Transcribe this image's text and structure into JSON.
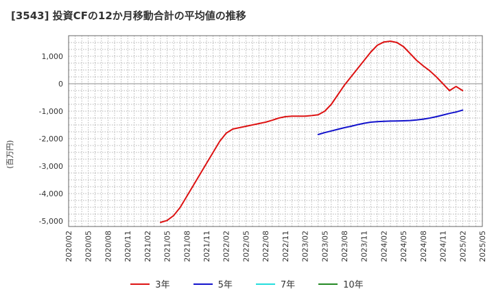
{
  "chart_data": {
    "type": "line",
    "title": "[3543]  投資CFの12か月移動合計の平均値の推移",
    "ylabel": "(百万円)",
    "xlabel": "",
    "ylim": [
      -5200,
      1750
    ],
    "yticks": [
      1000,
      0,
      -1000,
      -2000,
      -3000,
      -4000,
      -5000
    ],
    "ytick_labels": [
      "1,000",
      "0",
      "-1,000",
      "-2,000",
      "-3,000",
      "-4,000",
      "-5,000"
    ],
    "xticks": [
      "2020/02",
      "2020/05",
      "2020/08",
      "2020/11",
      "2021/02",
      "2021/05",
      "2021/08",
      "2021/11",
      "2022/02",
      "2022/05",
      "2022/08",
      "2022/11",
      "2023/02",
      "2023/05",
      "2023/08",
      "2023/11",
      "2024/02",
      "2024/05",
      "2024/08",
      "2024/11",
      "2025/02",
      "2025/05"
    ],
    "grid": true,
    "legend_position": "bottom",
    "series": [
      {
        "name": "3年",
        "color": "#dd1111",
        "x": [
          "2021/04",
          "2021/05",
          "2021/06",
          "2021/07",
          "2021/08",
          "2021/09",
          "2021/10",
          "2021/11",
          "2021/12",
          "2022/01",
          "2022/02",
          "2022/03",
          "2022/04",
          "2022/05",
          "2022/06",
          "2022/07",
          "2022/08",
          "2022/09",
          "2022/10",
          "2022/11",
          "2022/12",
          "2023/01",
          "2023/02",
          "2023/03",
          "2023/04",
          "2023/05",
          "2023/06",
          "2023/07",
          "2023/08",
          "2023/09",
          "2023/10",
          "2023/11",
          "2023/12",
          "2024/01",
          "2024/02",
          "2024/03",
          "2024/04",
          "2024/05",
          "2024/06",
          "2024/07",
          "2024/08",
          "2024/09",
          "2024/10",
          "2024/11",
          "2024/12",
          "2025/01",
          "2025/02"
        ],
        "values": [
          -5050,
          -4980,
          -4800,
          -4500,
          -4100,
          -3700,
          -3300,
          -2900,
          -2500,
          -2100,
          -1800,
          -1650,
          -1600,
          -1550,
          -1500,
          -1450,
          -1400,
          -1330,
          -1250,
          -1200,
          -1180,
          -1180,
          -1180,
          -1160,
          -1130,
          -1000,
          -750,
          -400,
          -50,
          250,
          550,
          850,
          1150,
          1400,
          1520,
          1550,
          1500,
          1350,
          1100,
          850,
          650,
          470,
          250,
          0,
          -250,
          -100,
          -250
        ]
      },
      {
        "name": "5年",
        "color": "#1111cc",
        "x": [
          "2023/04",
          "2023/05",
          "2023/06",
          "2023/07",
          "2023/08",
          "2023/09",
          "2023/10",
          "2023/11",
          "2023/12",
          "2024/01",
          "2024/02",
          "2024/03",
          "2024/04",
          "2024/05",
          "2024/06",
          "2024/07",
          "2024/08",
          "2024/09",
          "2024/10",
          "2024/11",
          "2024/12",
          "2025/01",
          "2025/02"
        ],
        "values": [
          -1850,
          -1780,
          -1720,
          -1660,
          -1600,
          -1550,
          -1490,
          -1440,
          -1400,
          -1380,
          -1370,
          -1360,
          -1355,
          -1350,
          -1340,
          -1320,
          -1290,
          -1250,
          -1200,
          -1140,
          -1080,
          -1030,
          -960
        ]
      },
      {
        "name": "7年",
        "color": "#22dddd",
        "x": [],
        "values": []
      },
      {
        "name": "10年",
        "color": "#228822",
        "x": [],
        "values": []
      }
    ]
  }
}
